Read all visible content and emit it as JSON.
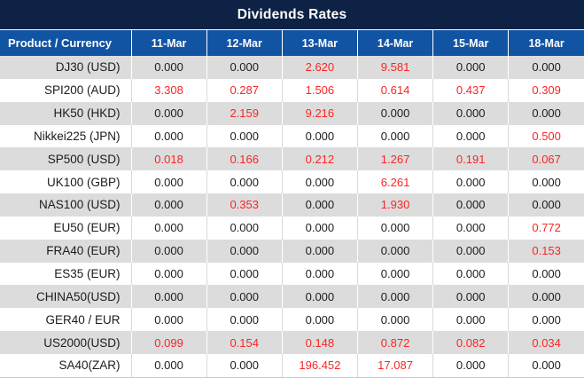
{
  "title": "Dividends Rates",
  "colors": {
    "title_bar_bg": "#0d2244",
    "header_row_bg": "#1254a4",
    "header_text": "#ffffff",
    "row_alt_bg": "#dcdcdc",
    "row_bg": "#ffffff",
    "value_text": "#1c1c1c",
    "nonzero_value_text": "#fa2525"
  },
  "table": {
    "label_header": "Product / Currency",
    "date_headers": [
      "11-Mar",
      "12-Mar",
      "13-Mar",
      "14-Mar",
      "15-Mar",
      "18-Mar"
    ],
    "rows": [
      {
        "product": "DJ30 (USD)",
        "values": [
          "0.000",
          "0.000",
          "2.620",
          "9.581",
          "0.000",
          "0.000"
        ]
      },
      {
        "product": "SPI200 (AUD)",
        "values": [
          "3.308",
          "0.287",
          "1.506",
          "0.614",
          "0.437",
          "0.309"
        ]
      },
      {
        "product": "HK50 (HKD)",
        "values": [
          "0.000",
          "2.159",
          "9.216",
          "0.000",
          "0.000",
          "0.000"
        ]
      },
      {
        "product": "Nikkei225 (JPN)",
        "values": [
          "0.000",
          "0.000",
          "0.000",
          "0.000",
          "0.000",
          "0.500"
        ]
      },
      {
        "product": "SP500 (USD)",
        "values": [
          "0.018",
          "0.166",
          "0.212",
          "1.267",
          "0.191",
          "0.067"
        ]
      },
      {
        "product": "UK100 (GBP)",
        "values": [
          "0.000",
          "0.000",
          "0.000",
          "6.261",
          "0.000",
          "0.000"
        ]
      },
      {
        "product": "NAS100 (USD)",
        "values": [
          "0.000",
          "0.353",
          "0.000",
          "1.930",
          "0.000",
          "0.000"
        ]
      },
      {
        "product": "EU50 (EUR)",
        "values": [
          "0.000",
          "0.000",
          "0.000",
          "0.000",
          "0.000",
          "0.772"
        ]
      },
      {
        "product": "FRA40 (EUR)",
        "values": [
          "0.000",
          "0.000",
          "0.000",
          "0.000",
          "0.000",
          "0.153"
        ]
      },
      {
        "product": "ES35 (EUR)",
        "values": [
          "0.000",
          "0.000",
          "0.000",
          "0.000",
          "0.000",
          "0.000"
        ]
      },
      {
        "product": "CHINA50(USD)",
        "values": [
          "0.000",
          "0.000",
          "0.000",
          "0.000",
          "0.000",
          "0.000"
        ]
      },
      {
        "product": "GER40 / EUR",
        "values": [
          "0.000",
          "0.000",
          "0.000",
          "0.000",
          "0.000",
          "0.000"
        ]
      },
      {
        "product": "US2000(USD)",
        "values": [
          "0.099",
          "0.154",
          "0.148",
          "0.872",
          "0.082",
          "0.034"
        ]
      },
      {
        "product": "SA40(ZAR)",
        "values": [
          "0.000",
          "0.000",
          "196.452",
          "17.087",
          "0.000",
          "0.000"
        ]
      }
    ]
  }
}
